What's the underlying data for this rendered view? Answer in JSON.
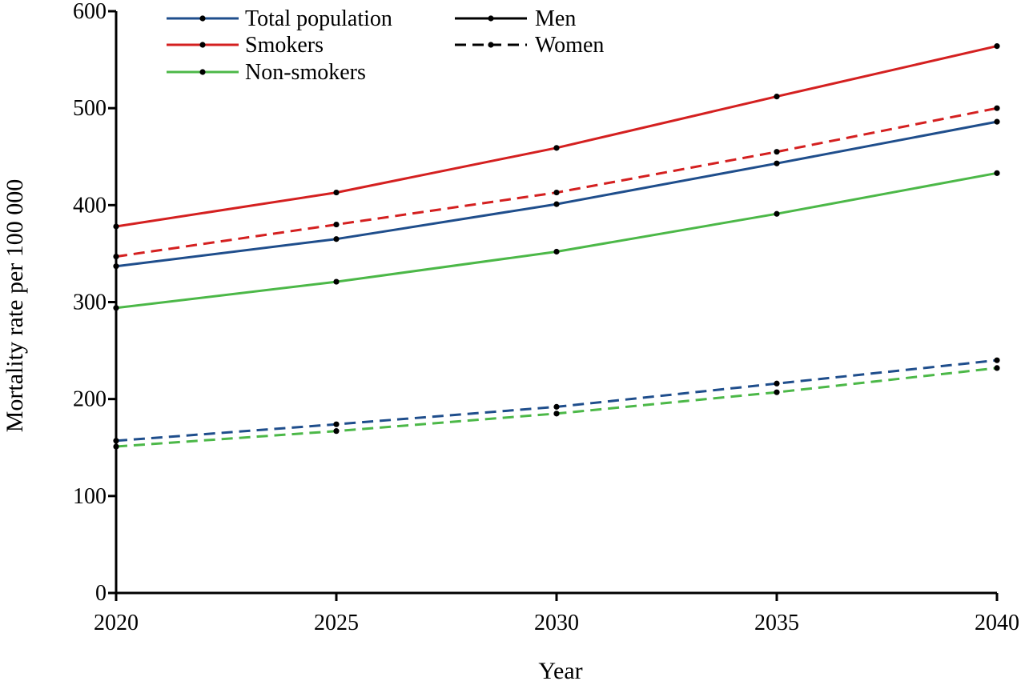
{
  "chart_data": {
    "type": "line",
    "title": "",
    "xlabel": "Year",
    "ylabel": "Mortality rate  per 100 000",
    "x": [
      2020,
      2025,
      2030,
      2035,
      2040
    ],
    "xlim": [
      2020,
      2040
    ],
    "ylim": [
      0,
      600
    ],
    "yticks": [
      0,
      100,
      200,
      300,
      400,
      500,
      600
    ],
    "xticks": [
      2020,
      2025,
      2030,
      2035,
      2040
    ],
    "grid": false,
    "legend": {
      "placement": "top-left",
      "color_entries": [
        {
          "label": "Total population",
          "color": "#1F4E8C"
        },
        {
          "label": "Smokers",
          "color": "#D42020"
        },
        {
          "label": "Non-smokers",
          "color": "#4CB848"
        }
      ],
      "style_entries": [
        {
          "label": "Men",
          "style": "solid"
        },
        {
          "label": "Women",
          "style": "dashed"
        }
      ]
    },
    "series": [
      {
        "name": "Smokers - Men",
        "group": "Smokers",
        "sex": "Men",
        "color": "#D42020",
        "style": "solid",
        "values": [
          378,
          413,
          459,
          512,
          564
        ]
      },
      {
        "name": "Smokers - Women",
        "group": "Smokers",
        "sex": "Women",
        "color": "#D42020",
        "style": "dashed",
        "values": [
          347,
          380,
          413,
          455,
          500
        ]
      },
      {
        "name": "Total population - Men",
        "group": "Total population",
        "sex": "Men",
        "color": "#1F4E8C",
        "style": "solid",
        "values": [
          337,
          365,
          401,
          443,
          486
        ]
      },
      {
        "name": "Non-smokers - Men",
        "group": "Non-smokers",
        "sex": "Men",
        "color": "#4CB848",
        "style": "solid",
        "values": [
          294,
          321,
          352,
          391,
          433
        ]
      },
      {
        "name": "Total population - Women",
        "group": "Total population",
        "sex": "Women",
        "color": "#1F4E8C",
        "style": "dashed",
        "values": [
          157,
          174,
          192,
          216,
          240
        ]
      },
      {
        "name": "Non-smokers - Women",
        "group": "Non-smokers",
        "sex": "Women",
        "color": "#4CB848",
        "style": "dashed",
        "values": [
          151,
          167,
          185,
          207,
          232
        ]
      }
    ]
  }
}
